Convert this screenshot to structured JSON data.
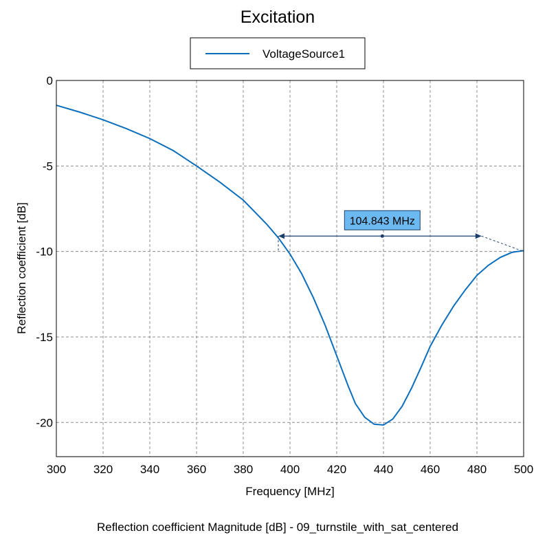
{
  "chart_data": {
    "type": "line",
    "title": "Excitation",
    "caption": "Reflection coefficient Magnitude [dB] - 09_turnstile_with_sat_centered",
    "xlabel": "Frequency [MHz]",
    "ylabel": "Reflection coefficient [dB]",
    "xlim": [
      300,
      500
    ],
    "ylim": [
      -22,
      0
    ],
    "xticks": [
      300,
      320,
      340,
      360,
      380,
      400,
      420,
      440,
      460,
      480,
      500
    ],
    "yticks": [
      0,
      -5,
      -10,
      -15,
      -20
    ],
    "xtick_labels": [
      "300",
      "320",
      "340",
      "360",
      "380",
      "400",
      "420",
      "440",
      "460",
      "480",
      "500"
    ],
    "ytick_labels": [
      "0",
      "-5",
      "-10",
      "-15",
      "-20"
    ],
    "grid": true,
    "legend_position": "top-center",
    "series": [
      {
        "name": "VoltageSource1",
        "color": "#0a6ebd",
        "x": [
          300,
          310,
          320,
          330,
          340,
          350,
          360,
          370,
          380,
          390,
          395,
          400,
          405,
          410,
          415,
          420,
          425,
          428,
          432,
          436,
          440,
          444,
          448,
          452,
          456,
          460,
          465,
          470,
          475,
          480,
          485,
          490,
          495,
          500
        ],
        "y": [
          -1.45,
          -1.85,
          -2.3,
          -2.82,
          -3.4,
          -4.1,
          -5.0,
          -5.95,
          -7.0,
          -8.4,
          -9.2,
          -10.15,
          -11.3,
          -12.7,
          -14.3,
          -16.1,
          -17.9,
          -18.9,
          -19.7,
          -20.1,
          -20.15,
          -19.8,
          -19.05,
          -18.0,
          -16.8,
          -15.55,
          -14.3,
          -13.2,
          -12.25,
          -11.4,
          -10.8,
          -10.35,
          -10.05,
          -9.95
        ]
      }
    ],
    "annotation": {
      "label": "104.843 MHz",
      "x_start": 395,
      "x_end": 482,
      "x_mid": 439.5,
      "y": -9.1,
      "end_x": 500,
      "end_y": -10
    }
  }
}
